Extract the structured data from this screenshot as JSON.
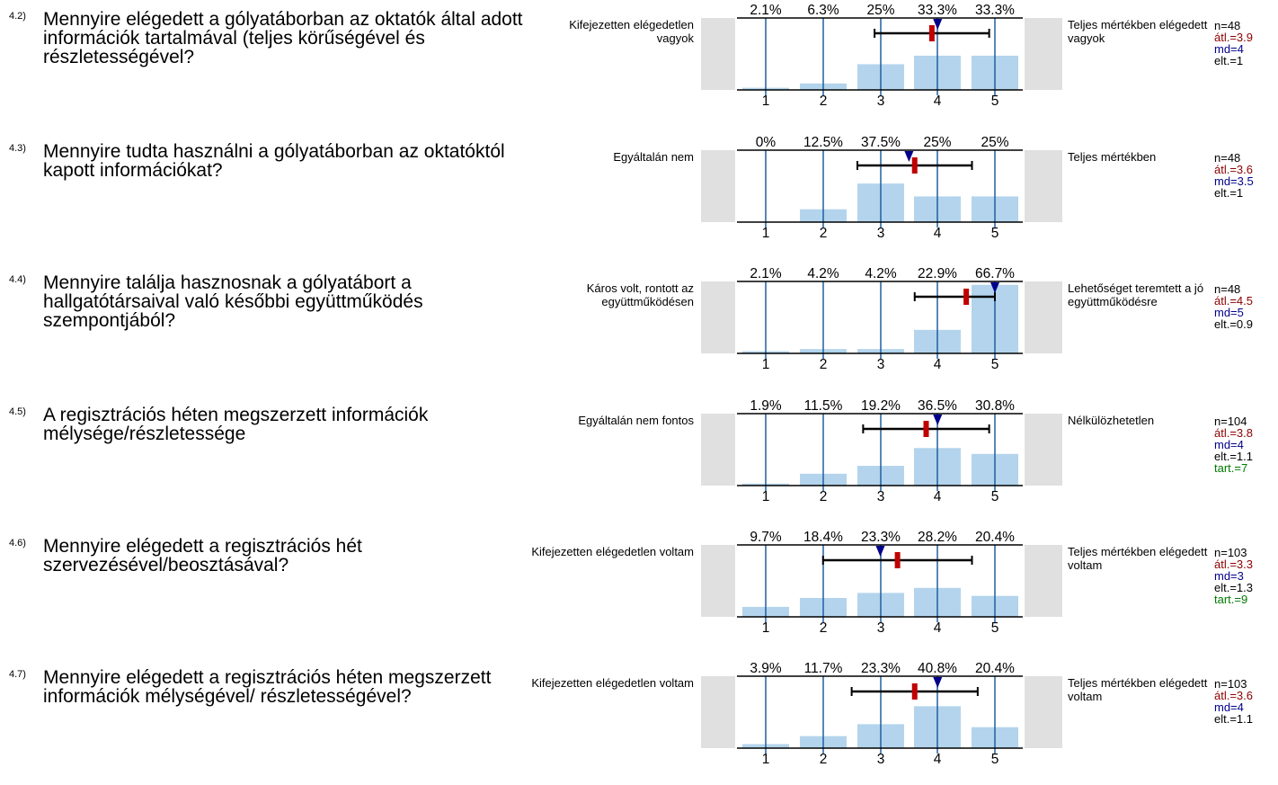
{
  "colors": {
    "bar": "#b3d4ec",
    "gridline": "#1f5fa0",
    "side_box": "#e0e0e0",
    "mean_marker": "#c00000",
    "median_marker": "#00008b",
    "whisker": "#000000"
  },
  "chart_data": [
    {
      "type": "bar",
      "number": "4.2)",
      "question": "Mennyire elégedett a gólyatáborban az oktatók által adott információk tartalmával (teljes körűségével és részletességével?",
      "label_left": "Kifejezetten elégedetlen vagyok",
      "label_right": "Teljes mértékben elégedett vagyok",
      "categories": [
        "1",
        "2",
        "3",
        "4",
        "5"
      ],
      "percent_labels": [
        "2.1%",
        "6.3%",
        "25%",
        "33.3%",
        "33.3%"
      ],
      "values": [
        2.1,
        6.3,
        25,
        33.3,
        33.3
      ],
      "ylim": [
        0,
        70
      ],
      "mean": 3.9,
      "median": 4,
      "sd": 1,
      "stats": {
        "n": "n=48",
        "mean": "átl.=3.9",
        "median": "md=4",
        "sd": "elt.=1"
      }
    },
    {
      "type": "bar",
      "number": "4.3)",
      "question": "Mennyire tudta használni a gólyatáborban az oktatóktól kapott információkat?",
      "label_left": "Egyáltalán nem",
      "label_right": "Teljes mértékben",
      "categories": [
        "1",
        "2",
        "3",
        "4",
        "5"
      ],
      "percent_labels": [
        "0%",
        "12.5%",
        "37.5%",
        "25%",
        "25%"
      ],
      "values": [
        0,
        12.5,
        37.5,
        25,
        25
      ],
      "ylim": [
        0,
        70
      ],
      "mean": 3.6,
      "median": 3.5,
      "sd": 1,
      "stats": {
        "n": "n=48",
        "mean": "átl.=3.6",
        "median": "md=3.5",
        "sd": "elt.=1"
      }
    },
    {
      "type": "bar",
      "number": "4.4)",
      "question": "Mennyire találja hasznosnak a gólyatábort  a hallgatótársaival való későbbi együttműködés szempontjából?",
      "label_left": "Káros volt, rontott az együttműködésen",
      "label_right": "Lehetőséget teremtett a jó együttműködésre",
      "categories": [
        "1",
        "2",
        "3",
        "4",
        "5"
      ],
      "percent_labels": [
        "2.1%",
        "4.2%",
        "4.2%",
        "22.9%",
        "66.7%"
      ],
      "values": [
        2.1,
        4.2,
        4.2,
        22.9,
        66.7
      ],
      "ylim": [
        0,
        70
      ],
      "mean": 4.5,
      "median": 5,
      "sd": 0.9,
      "stats": {
        "n": "n=48",
        "mean": "átl.=4.5",
        "median": "md=5",
        "sd": "elt.=0.9"
      }
    },
    {
      "type": "bar",
      "number": "4.5)",
      "question": "A regisztrációs héten megszerzett információk mélysége/részletessége",
      "label_left": "Egyáltalán nem fontos",
      "label_right": "Nélkülözhetetlen",
      "categories": [
        "1",
        "2",
        "3",
        "4",
        "5"
      ],
      "percent_labels": [
        "1.9%",
        "11.5%",
        "19.2%",
        "36.5%",
        "30.8%"
      ],
      "values": [
        1.9,
        11.5,
        19.2,
        36.5,
        30.8
      ],
      "ylim": [
        0,
        70
      ],
      "mean": 3.8,
      "median": 4,
      "sd": 1.1,
      "stats": {
        "n": "n=104",
        "mean": "átl.=3.8",
        "median": "md=4",
        "sd": "elt.=1.1",
        "tart": "tart.=7"
      }
    },
    {
      "type": "bar",
      "number": "4.6)",
      "question": "Mennyire elégedett a regisztrációs hét szervezésével/beosztásával?",
      "label_left": "Kifejezetten elégedetlen voltam",
      "label_right": "Teljes mértékben elégedett voltam",
      "categories": [
        "1",
        "2",
        "3",
        "4",
        "5"
      ],
      "percent_labels": [
        "9.7%",
        "18.4%",
        "23.3%",
        "28.2%",
        "20.4%"
      ],
      "values": [
        9.7,
        18.4,
        23.3,
        28.2,
        20.4
      ],
      "ylim": [
        0,
        70
      ],
      "mean": 3.3,
      "median": 3,
      "sd": 1.3,
      "stats": {
        "n": "n=103",
        "mean": "átl.=3.3",
        "median": "md=3",
        "sd": "elt.=1.3",
        "tart": "tart.=9"
      }
    },
    {
      "type": "bar",
      "number": "4.7)",
      "question": "Mennyire elégedett a regisztrációs héten megszerzett információk mélységével/ részletességével?",
      "label_left": "Kifejezetten elégedetlen voltam",
      "label_right": "Teljes mértékben elégedett voltam",
      "categories": [
        "1",
        "2",
        "3",
        "4",
        "5"
      ],
      "percent_labels": [
        "3.9%",
        "11.7%",
        "23.3%",
        "40.8%",
        "20.4%"
      ],
      "values": [
        3.9,
        11.7,
        23.3,
        40.8,
        20.4
      ],
      "ylim": [
        0,
        70
      ],
      "mean": 3.6,
      "median": 4,
      "sd": 1.1,
      "stats": {
        "n": "n=103",
        "mean": "átl.=3.6",
        "median": "md=4",
        "sd": "elt.=1.1"
      }
    }
  ]
}
